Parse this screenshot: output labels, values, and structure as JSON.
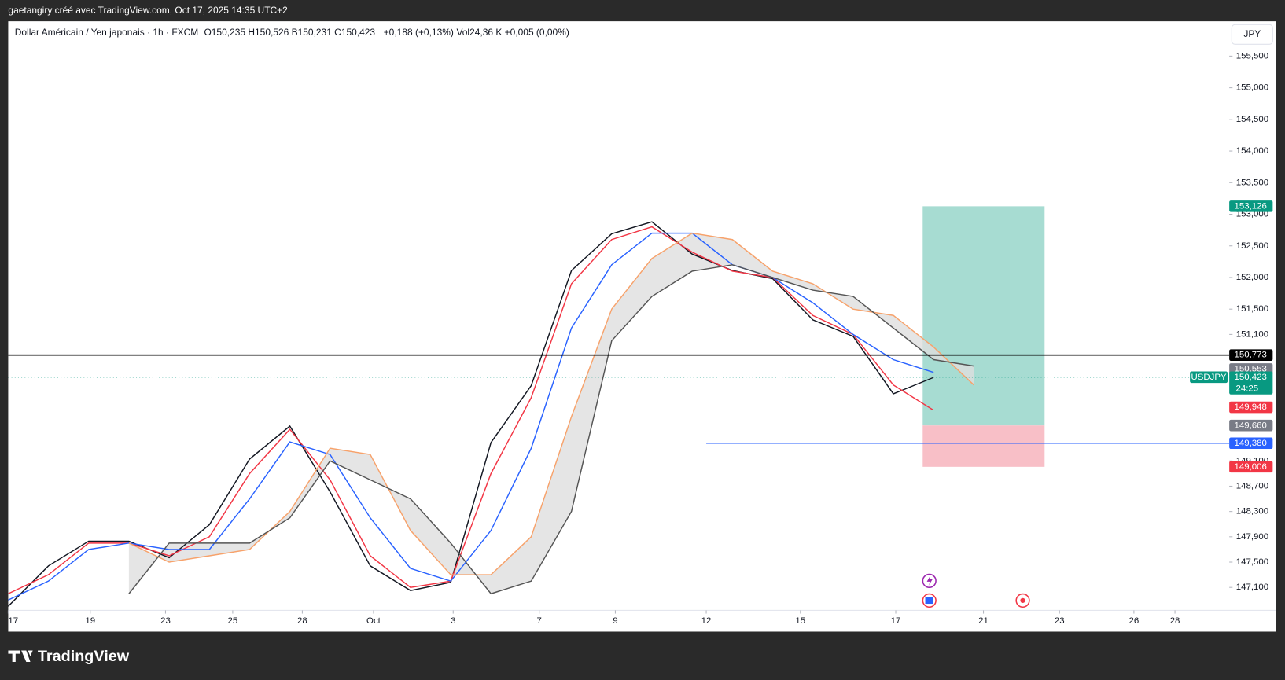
{
  "header": {
    "caption": "gaetangiry créé avec TradingView.com, Oct 17, 2025 14:35 UTC+2",
    "symbol": "Dollar Américain / Yen japonais · 1h · FXCM",
    "ohlc": "O150,235 H150,526 B150,231 C150,423",
    "change": "+0,188 (+0,13%)",
    "volume": "Vol24,36 K +0,005 (0,00%)",
    "currency": "JPY"
  },
  "chart_data": {
    "type": "line",
    "x": [
      0,
      1,
      2,
      3,
      4,
      5,
      6,
      7,
      8,
      9,
      10,
      11,
      12,
      13,
      14,
      15,
      16,
      17,
      18,
      19,
      20,
      21,
      22,
      23,
      24
    ],
    "xlim": [
      0,
      30.35
    ],
    "xticks": [
      {
        "value": 0,
        "label": "17"
      },
      {
        "value": 2.04,
        "label": "19"
      },
      {
        "value": 3.91,
        "label": "23"
      },
      {
        "value": 5.58,
        "label": "25"
      },
      {
        "value": 7.31,
        "label": "28"
      },
      {
        "value": 9.08,
        "label": "Oct"
      },
      {
        "value": 11.06,
        "label": "3"
      },
      {
        "value": 13.2,
        "label": "7"
      },
      {
        "value": 15.09,
        "label": "9"
      },
      {
        "value": 17.35,
        "label": "12"
      },
      {
        "value": 19.69,
        "label": "15"
      },
      {
        "value": 22.06,
        "label": "17"
      },
      {
        "value": 24.24,
        "label": "21"
      },
      {
        "value": 26.13,
        "label": "23"
      },
      {
        "value": 27.98,
        "label": "26"
      },
      {
        "value": 29.0,
        "label": "28"
      }
    ],
    "ylim": [
      146.75,
      156.05
    ],
    "yticks": [
      {
        "value": 155.5,
        "label": "155,500"
      },
      {
        "value": 155.0,
        "label": "155,000"
      },
      {
        "value": 154.5,
        "label": "154,500"
      },
      {
        "value": 154.0,
        "label": "154,000"
      },
      {
        "value": 153.5,
        "label": "153,500"
      },
      {
        "value": 153.0,
        "label": "153,000"
      },
      {
        "value": 152.5,
        "label": "152,500"
      },
      {
        "value": 152.0,
        "label": "152,000"
      },
      {
        "value": 151.5,
        "label": "151,500"
      },
      {
        "value": 151.1,
        "label": "151,100"
      },
      {
        "value": 149.1,
        "label": "149,100"
      },
      {
        "value": 148.7,
        "label": "148,700"
      },
      {
        "value": 148.3,
        "label": "148,300"
      },
      {
        "value": 147.9,
        "label": "147,900"
      },
      {
        "value": 147.5,
        "label": "147,500"
      },
      {
        "value": 147.1,
        "label": "147,100"
      }
    ],
    "series": [
      {
        "color": "#131722",
        "values": [
          146.8,
          147.44,
          147.83,
          147.83,
          147.57,
          148.09,
          149.13,
          149.65,
          148.61,
          147.44,
          147.05,
          147.18,
          149.39,
          150.29,
          152.11,
          152.69,
          152.88,
          152.37,
          152.11,
          151.98,
          151.33,
          151.07,
          150.16,
          150.42,
          null
        ]
      },
      {
        "color": "#f23645",
        "values": [
          147.0,
          147.3,
          147.8,
          147.8,
          147.6,
          147.9,
          148.9,
          149.6,
          148.8,
          147.6,
          147.1,
          147.2,
          148.9,
          150.1,
          151.9,
          152.6,
          152.8,
          152.4,
          152.1,
          152.0,
          151.4,
          151.1,
          150.3,
          149.9,
          null
        ]
      },
      {
        "color": "#2962ff",
        "values": [
          146.9,
          147.2,
          147.7,
          147.8,
          147.7,
          147.7,
          148.5,
          149.4,
          149.2,
          148.2,
          147.4,
          147.2,
          148.0,
          149.3,
          151.2,
          152.2,
          152.7,
          152.7,
          152.2,
          152.0,
          151.6,
          151.1,
          150.7,
          150.5,
          null
        ]
      },
      {
        "color": "#f7a26b",
        "values": [
          null,
          null,
          null,
          147.8,
          147.5,
          147.6,
          147.7,
          148.3,
          149.3,
          149.2,
          148.0,
          147.3,
          147.3,
          147.9,
          149.8,
          151.5,
          152.3,
          152.7,
          152.6,
          152.1,
          151.9,
          151.5,
          151.4,
          150.9,
          150.3
        ]
      },
      {
        "color": "#555555",
        "values": [
          null,
          null,
          null,
          147.0,
          147.8,
          147.8,
          147.8,
          148.2,
          149.1,
          148.8,
          148.5,
          147.8,
          147.0,
          147.2,
          148.3,
          151.0,
          151.7,
          152.1,
          152.2,
          152.0,
          151.8,
          151.7,
          151.2,
          150.7,
          150.6
        ]
      }
    ],
    "cloud_color": "#dedede",
    "position": {
      "x_start": 22.73,
      "x_end": 25.76,
      "entry": 149.66,
      "target": 153.126,
      "stop": 149.006,
      "target_color": "#a7dcd2",
      "stop_color": "#f8bfc7"
    },
    "price_tags": [
      {
        "value": 153.126,
        "label": "153,126",
        "color": "#089981"
      },
      {
        "value": 150.773,
        "label": "150,773",
        "color": "#000000",
        "line_from": 0
      },
      {
        "value": 150.553,
        "label": "150,553",
        "color": "#787b86"
      },
      {
        "value": 150.423,
        "label": "150,423",
        "color": "#089981",
        "line_from": 0,
        "dotted": true,
        "symbol": "USDJPY",
        "countdown": "24:25"
      },
      {
        "value": 149.948,
        "label": "149,948",
        "color": "#f23645"
      },
      {
        "value": 149.66,
        "label": "149,660",
        "color": "#787b86"
      },
      {
        "value": 149.38,
        "label": "149,380",
        "color": "#2962ff",
        "line_from": 17.35
      },
      {
        "value": 149.006,
        "label": "149,006",
        "color": "#f23645"
      }
    ]
  },
  "footer": {
    "brand": "TradingView"
  }
}
